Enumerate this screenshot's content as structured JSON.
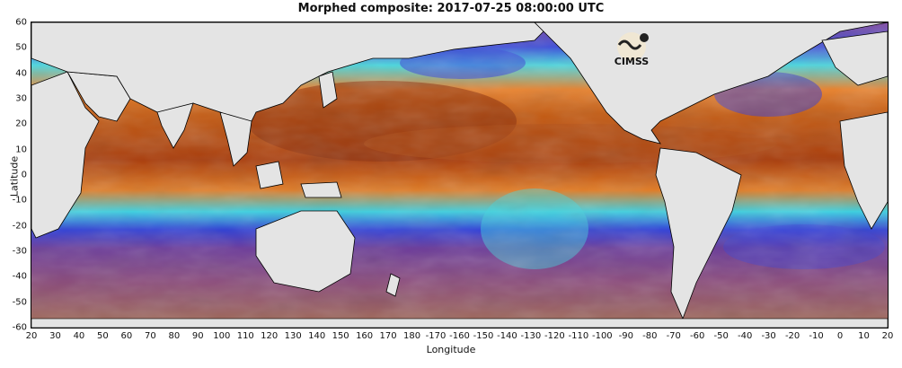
{
  "title": "Morphed composite: 2017-07-25 08:00:00 UTC",
  "xlabel": "Longitude",
  "ylabel": "Latitude",
  "logo_text": "CIMSS",
  "y_ticks": [
    "60",
    "50",
    "40",
    "30",
    "20",
    "10",
    "0",
    "-10",
    "-20",
    "-30",
    "-40",
    "-50",
    "-60"
  ],
  "x_ticks": [
    "20",
    "30",
    "40",
    "50",
    "60",
    "70",
    "80",
    "90",
    "100",
    "110",
    "120",
    "130",
    "140",
    "150",
    "160",
    "170",
    "180",
    "-170",
    "-160",
    "-150",
    "-140",
    "-130",
    "-120",
    "-110",
    "-100",
    "-90",
    "-80",
    "-70",
    "-60",
    "-50",
    "-40",
    "-30",
    "-20",
    "-10",
    "0",
    "10",
    "20"
  ],
  "colors": {
    "dry": "#6a3a8a",
    "low": "#2a3fd0",
    "mid": "#3cd9e0",
    "midhigh": "#7fe07a",
    "high": "#f08a20",
    "veryhigh": "#9a2a00",
    "land": "#e4e4e4",
    "desert": "#b07a40"
  }
}
